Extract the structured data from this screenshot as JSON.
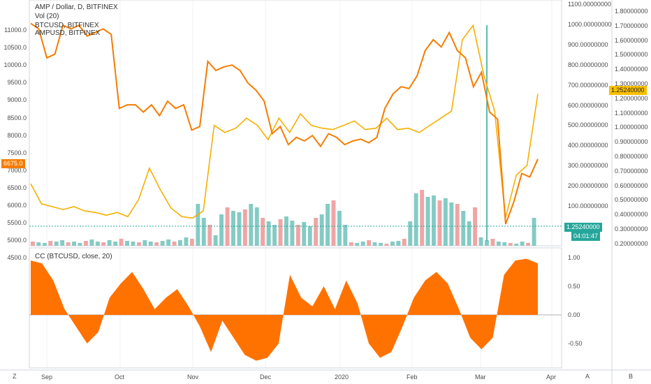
{
  "legend": {
    "symbol_line": "AMP / Dollar, D, BITFINEX",
    "volume_line": "Vol (20)",
    "series1": "BTCUSD, BITFINEX",
    "series2": "AMPUSD, BITFINEX"
  },
  "indicator_label": "CC (BTCUSD, close, 20)",
  "colors": {
    "btc": "#f57c00",
    "amp": "#f5b000",
    "vol_up": "#84cbc4",
    "vol_down": "#f0a5a5",
    "cc_fill": "#ff7200",
    "teal_tag": "#26a69a",
    "btc_tag": "#f57c00",
    "amp_tag": "#f9c000",
    "grid": "#e0e3eb"
  },
  "left_axis": [
    "11000.0",
    "10500.0",
    "10000.0",
    "9500.0",
    "9000.0",
    "8500.0",
    "8000.0",
    "7500.0",
    "7000.0",
    "6500.0",
    "6000.0",
    "5500.0",
    "5000.0",
    "4500.0"
  ],
  "mid_axis": [
    "1100.00000000",
    "1000.00000000",
    "900.00000000",
    "800.00000000",
    "700.00000000",
    "600.00000000",
    "500.00000000",
    "400.00000000",
    "300.00000000",
    "200.00000000",
    "100.00000000"
  ],
  "right_axis": [
    "1.80000000",
    "1.70000000",
    "1.60000000",
    "1.50000000",
    "1.40000000",
    "1.30000000",
    "1.20000000",
    "1.10000000",
    "1.00000000",
    "0.90000000",
    "0.80000000",
    "0.70000000",
    "0.60000000",
    "0.50000000",
    "0.40000000",
    "0.30000000",
    "0.20000000"
  ],
  "cc_axis": [
    "1.00",
    "0.50",
    "0.00",
    "-0.50"
  ],
  "tags": {
    "btc_price": "6675.0",
    "amp_price": "1.25240000",
    "teal_price": "1.25240000",
    "countdown": "04:01:47"
  },
  "x_axis": [
    "Sep",
    "Oct",
    "Nov",
    "Dec",
    "2020",
    "Feb",
    "Mar",
    "Apr"
  ],
  "bottom": {
    "z": "Z",
    "a": "A",
    "b": "B"
  },
  "chart_data": {
    "type": "line",
    "btc": [
      10450,
      10300,
      9500,
      9600,
      10400,
      10300,
      10400,
      10100,
      10200,
      10300,
      10150,
      8100,
      8200,
      8200,
      8000,
      8200,
      7900,
      8300,
      8100,
      8200,
      7500,
      7600,
      9400,
      9150,
      9250,
      9300,
      9150,
      8800,
      8600,
      8300,
      7400,
      7600,
      7100,
      7300,
      7200,
      7350,
      7050,
      7400,
      7300,
      7100,
      7200,
      7250,
      7150,
      7300,
      8100,
      8500,
      8700,
      8650,
      9000,
      9700,
      10000,
      9800,
      10200,
      9700,
      9500,
      8700,
      9100,
      8000,
      7800,
      4900,
      5500,
      6300,
      6200,
      6700
    ],
    "amp": [
      0.59,
      0.45,
      0.43,
      0.41,
      0.43,
      0.4,
      0.39,
      0.37,
      0.39,
      0.36,
      0.48,
      0.7,
      0.55,
      0.42,
      0.36,
      0.35,
      0.4,
      1.0,
      0.95,
      0.98,
      1.05,
      1.0,
      0.9,
      1.05,
      0.95,
      1.08,
      1.0,
      0.98,
      0.97,
      1.0,
      1.03,
      0.97,
      0.98,
      1.05,
      0.97,
      0.98,
      0.95,
      1.0,
      1.05,
      1.1,
      1.6,
      1.7,
      1.35,
      1.1,
      0.35,
      0.65,
      0.72,
      1.22
    ],
    "cc": [
      0.95,
      0.9,
      0.6,
      0.1,
      -0.2,
      -0.5,
      -0.3,
      0.3,
      0.55,
      0.75,
      0.45,
      0.1,
      0.3,
      0.45,
      0.15,
      -0.2,
      -0.65,
      -0.1,
      -0.4,
      -0.7,
      -0.8,
      -0.75,
      -0.5,
      0.7,
      0.3,
      0.15,
      0.5,
      0.1,
      0.6,
      0.2,
      -0.5,
      -0.75,
      -0.65,
      -0.2,
      0.3,
      0.6,
      0.75,
      0.55,
      0.1,
      -0.4,
      -0.6,
      -0.4,
      0.7,
      0.95,
      0.98,
      0.9
    ],
    "ylim_btc": [
      4300,
      11100
    ],
    "ylim_cc": [
      -0.75,
      1.15
    ]
  }
}
